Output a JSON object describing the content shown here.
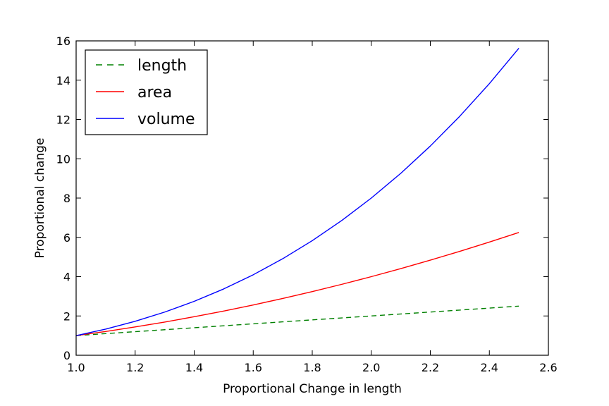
{
  "chart_data": {
    "type": "line",
    "xlabel": "Proportional Change in length",
    "ylabel": "Proportional change",
    "xlim": [
      1.0,
      2.6
    ],
    "ylim": [
      0,
      16
    ],
    "xticks": [
      "1.0",
      "1.2",
      "1.4",
      "1.6",
      "1.8",
      "2.0",
      "2.2",
      "2.4",
      "2.6"
    ],
    "yticks": [
      "0",
      "2",
      "4",
      "6",
      "8",
      "10",
      "12",
      "14",
      "16"
    ],
    "grid": false,
    "legend_position": "top-left",
    "x": [
      1.0,
      1.1,
      1.2,
      1.3,
      1.4,
      1.5,
      1.6,
      1.7,
      1.8,
      1.9,
      2.0,
      2.1,
      2.2,
      2.3,
      2.4,
      2.5
    ],
    "series": [
      {
        "name": "length",
        "color": "#008000",
        "dash": true,
        "values": [
          1.0,
          1.1,
          1.2,
          1.3,
          1.4,
          1.5,
          1.6,
          1.7,
          1.8,
          1.9,
          2.0,
          2.1,
          2.2,
          2.3,
          2.4,
          2.5
        ]
      },
      {
        "name": "area",
        "color": "#ff0000",
        "dash": false,
        "values": [
          1.0,
          1.21,
          1.44,
          1.69,
          1.96,
          2.25,
          2.56,
          2.89,
          3.24,
          3.61,
          4.0,
          4.41,
          4.84,
          5.29,
          5.76,
          6.25
        ]
      },
      {
        "name": "volume",
        "color": "#0000ff",
        "dash": false,
        "values": [
          1.0,
          1.331,
          1.728,
          2.197,
          2.744,
          3.375,
          4.096,
          4.913,
          5.832,
          6.859,
          8.0,
          9.261,
          10.648,
          12.167,
          13.824,
          15.625
        ]
      }
    ]
  }
}
